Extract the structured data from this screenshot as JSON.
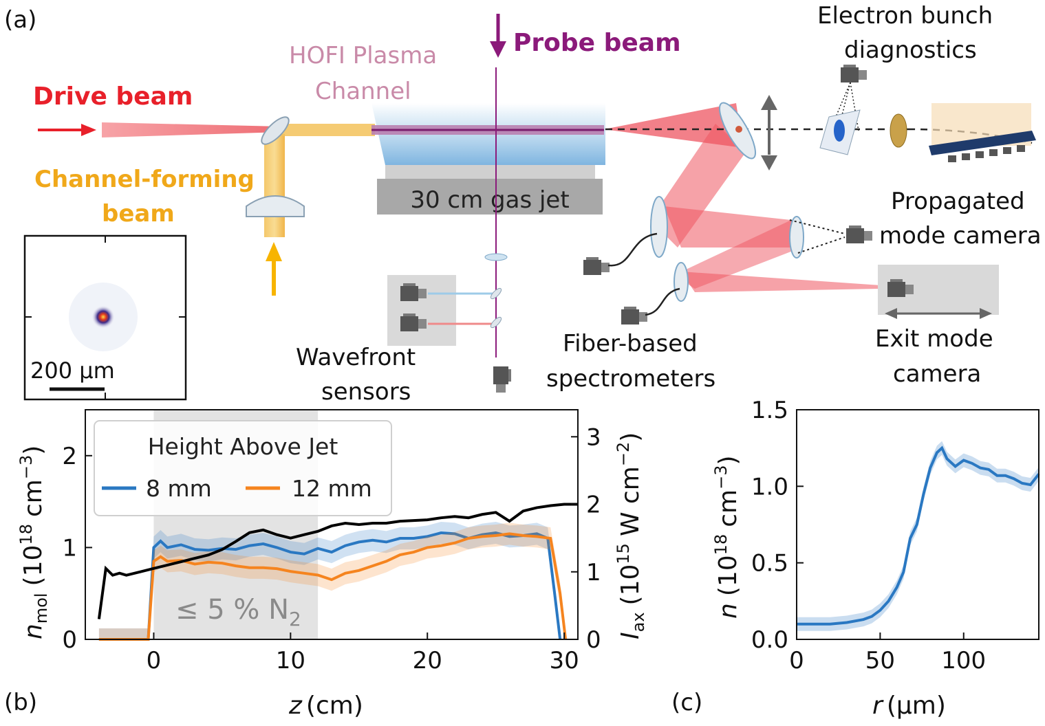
{
  "panel_labels": {
    "a": "(a)",
    "b": "(b)",
    "c": "(c)"
  },
  "schematic": {
    "drive_beam": "Drive beam",
    "channel_forming_1": "Channel-forming",
    "channel_forming_2": "beam",
    "hofi_1": "HOFI Plasma",
    "hofi_2": "Channel",
    "probe_beam": "Probe beam",
    "gas_jet": "30 cm gas jet",
    "electron_1": "Electron bunch",
    "electron_2": "diagnostics",
    "propagated_1": "Propagated",
    "propagated_2": "mode camera",
    "wavefront_1": "Wavefront",
    "wavefront_2": "sensors",
    "fiber_1": "Fiber-based",
    "fiber_2": "spectrometers",
    "exit_1": "Exit mode",
    "exit_2": "camera",
    "inset_scale": "200 µm",
    "colors": {
      "drive": "#e8202a",
      "channel": "#f0b21a",
      "probe": "#8b1a7a",
      "hofi": "#c98aa8"
    }
  },
  "chart_data": [
    {
      "type": "line",
      "panel": "(b)",
      "legend_title": "Height Above Jet",
      "xlabel_main": "z",
      "xlabel_unit": "(cm)",
      "ylabel_left_sym": "n",
      "ylabel_left_sub": "mol",
      "ylabel_left_unit": "(10",
      "ylabel_left_exp": "18",
      "ylabel_left_tail": "cm",
      "ylabel_left_exp2": "−3",
      "ylabel_right_sym": "I",
      "ylabel_right_sub": "ax",
      "ylabel_right_unit": "(10",
      "ylabel_right_exp": "15",
      "ylabel_right_tail": "W cm",
      "ylabel_right_exp2": "−2",
      "shaded_label": "≤ 5 % N",
      "shaded_sub": "2",
      "shaded_range": [
        0,
        12
      ],
      "xlim": [
        -5,
        31
      ],
      "xticks": [
        0,
        10,
        20,
        30
      ],
      "ylim_left": [
        0,
        2.5
      ],
      "yticks_left": [
        0,
        1,
        2
      ],
      "ylim_right": [
        0,
        3.4
      ],
      "yticks_right": [
        0,
        1,
        2,
        3
      ],
      "series": [
        {
          "name": "8 mm",
          "color": "#2a78c2",
          "x": [
            -4,
            -0.4,
            0,
            0.5,
            1,
            2,
            3,
            4,
            5,
            6,
            7,
            8,
            9,
            10,
            11,
            12,
            13,
            14,
            15,
            16,
            17,
            18,
            19,
            20,
            21,
            22,
            23,
            24,
            25,
            26,
            27,
            28,
            28.8,
            29.3,
            29.7
          ],
          "values": [
            0,
            0,
            1.0,
            1.07,
            1.0,
            1.03,
            0.98,
            0.97,
            0.99,
            0.98,
            1.02,
            1.04,
            1.0,
            0.95,
            0.93,
            0.99,
            0.95,
            1.02,
            1.06,
            1.08,
            1.06,
            1.1,
            1.1,
            1.12,
            1.16,
            1.15,
            1.1,
            1.14,
            1.16,
            1.12,
            1.13,
            1.15,
            1.1,
            0.5,
            0
          ]
        },
        {
          "name": "12 mm",
          "color": "#f5841f",
          "x": [
            -4,
            -0.4,
            0,
            0.5,
            1,
            2,
            3,
            4,
            5,
            6,
            7,
            8,
            9,
            10,
            11,
            12,
            13,
            14,
            15,
            16,
            17,
            18,
            19,
            20,
            21,
            22,
            23,
            24,
            25,
            26,
            27,
            28,
            29,
            29.7,
            30.1
          ],
          "values": [
            0,
            0,
            0.85,
            0.9,
            0.85,
            0.86,
            0.82,
            0.84,
            0.83,
            0.8,
            0.78,
            0.78,
            0.77,
            0.74,
            0.72,
            0.7,
            0.65,
            0.72,
            0.75,
            0.8,
            0.85,
            0.92,
            0.95,
            1.0,
            1.02,
            1.05,
            1.1,
            1.12,
            1.13,
            1.15,
            1.13,
            1.12,
            1.1,
            0.5,
            0
          ]
        },
        {
          "name": "I_ax",
          "color": "#000000",
          "axis": "right",
          "x": [
            -4,
            -3.5,
            -3,
            -2.5,
            -2,
            -1,
            0,
            1,
            2,
            3,
            4,
            5,
            6,
            7,
            8,
            9,
            10,
            11,
            12,
            13,
            14,
            15,
            16,
            17,
            18,
            19,
            20,
            21,
            22,
            23,
            24,
            25,
            26,
            27,
            28,
            29,
            30,
            31
          ],
          "values": [
            0.3,
            1.05,
            0.95,
            0.98,
            0.95,
            1.0,
            1.05,
            1.1,
            1.15,
            1.2,
            1.25,
            1.33,
            1.45,
            1.58,
            1.62,
            1.55,
            1.5,
            1.55,
            1.6,
            1.68,
            1.72,
            1.7,
            1.72,
            1.72,
            1.75,
            1.76,
            1.77,
            1.8,
            1.82,
            1.8,
            1.85,
            1.88,
            1.75,
            1.9,
            1.95,
            1.98,
            2.0,
            2.0
          ]
        }
      ]
    },
    {
      "type": "line",
      "panel": "(c)",
      "xlabel_main": "r",
      "xlabel_unit": "(µm)",
      "ylabel_sym": "n",
      "ylabel_unit": "(10",
      "ylabel_exp": "18",
      "ylabel_tail": "cm",
      "ylabel_exp2": "−3",
      "xlim": [
        0,
        145
      ],
      "xticks": [
        0,
        50,
        100
      ],
      "ylim": [
        0,
        1.5
      ],
      "yticks": [
        0.0,
        0.5,
        1.0,
        1.5
      ],
      "series": [
        {
          "name": "n",
          "color": "#2a78c2",
          "x": [
            0,
            10,
            20,
            30,
            40,
            45,
            50,
            55,
            60,
            64,
            68,
            72,
            76,
            80,
            84,
            87,
            90,
            95,
            100,
            105,
            110,
            115,
            120,
            125,
            130,
            135,
            140,
            145
          ],
          "values": [
            0.1,
            0.1,
            0.1,
            0.11,
            0.13,
            0.15,
            0.19,
            0.25,
            0.34,
            0.44,
            0.66,
            0.75,
            0.95,
            1.12,
            1.22,
            1.25,
            1.18,
            1.13,
            1.17,
            1.15,
            1.12,
            1.11,
            1.07,
            1.07,
            1.05,
            1.02,
            1.01,
            1.08
          ]
        }
      ]
    }
  ]
}
